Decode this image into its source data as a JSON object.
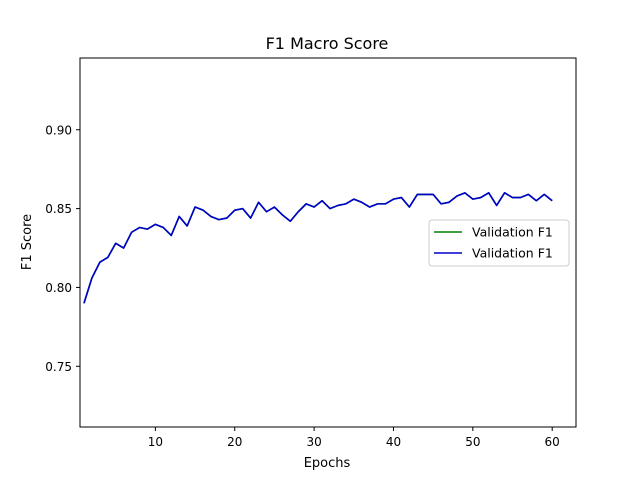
{
  "chart_data": {
    "type": "line",
    "title": "F1 Macro Score",
    "xlabel": "Epochs",
    "ylabel": "F1 Score",
    "xlim": [
      0.5,
      63.0
    ],
    "ylim": [
      0.7115,
      0.9455
    ],
    "xticks": [
      10,
      20,
      30,
      40,
      50,
      60
    ],
    "yticks": [
      0.75,
      0.8,
      0.85,
      0.9
    ],
    "xtick_labels": [
      "10",
      "20",
      "30",
      "40",
      "50",
      "60"
    ],
    "ytick_labels": [
      "0.75",
      "0.80",
      "0.85",
      "0.90"
    ],
    "grid": false,
    "legend_position": "center-right",
    "x": [
      1,
      2,
      3,
      4,
      5,
      6,
      7,
      8,
      9,
      10,
      11,
      12,
      13,
      14,
      15,
      16,
      17,
      18,
      19,
      20,
      21,
      22,
      23,
      24,
      25,
      26,
      27,
      28,
      29,
      30,
      31,
      32,
      33,
      34,
      35,
      36,
      37,
      38,
      39,
      40,
      41,
      42,
      43,
      44,
      45,
      46,
      47,
      48,
      49,
      50,
      51,
      52,
      53,
      54,
      55,
      56,
      57,
      58,
      59,
      60
    ],
    "series": [
      {
        "name": "Validation F1",
        "color": "#008000",
        "values": [
          0.79,
          0.806,
          0.816,
          0.819,
          0.828,
          0.825,
          0.835,
          0.838,
          0.837,
          0.84,
          0.838,
          0.833,
          0.845,
          0.839,
          0.851,
          0.849,
          0.845,
          0.843,
          0.844,
          0.849,
          0.85,
          0.844,
          0.854,
          0.848,
          0.851,
          0.846,
          0.842,
          0.848,
          0.853,
          0.851,
          0.855,
          0.85,
          0.852,
          0.853,
          0.856,
          0.854,
          0.851,
          0.853,
          0.853,
          0.856,
          0.857,
          0.851,
          0.859,
          0.859,
          0.859,
          0.853,
          0.854,
          0.858,
          0.86,
          0.856,
          0.857,
          0.86,
          0.852,
          0.86,
          0.857,
          0.857,
          0.859,
          0.855,
          0.859,
          0.855
        ]
      },
      {
        "name": "Validation F1",
        "color": "#0000cc",
        "values": [
          0.79,
          0.806,
          0.816,
          0.819,
          0.828,
          0.825,
          0.835,
          0.838,
          0.837,
          0.84,
          0.838,
          0.833,
          0.845,
          0.839,
          0.851,
          0.849,
          0.845,
          0.843,
          0.844,
          0.849,
          0.85,
          0.844,
          0.854,
          0.848,
          0.851,
          0.846,
          0.842,
          0.848,
          0.853,
          0.851,
          0.855,
          0.85,
          0.852,
          0.853,
          0.856,
          0.854,
          0.851,
          0.853,
          0.853,
          0.856,
          0.857,
          0.851,
          0.859,
          0.859,
          0.859,
          0.853,
          0.854,
          0.858,
          0.86,
          0.856,
          0.857,
          0.86,
          0.852,
          0.86,
          0.857,
          0.857,
          0.859,
          0.855,
          0.859,
          0.855
        ]
      }
    ]
  }
}
